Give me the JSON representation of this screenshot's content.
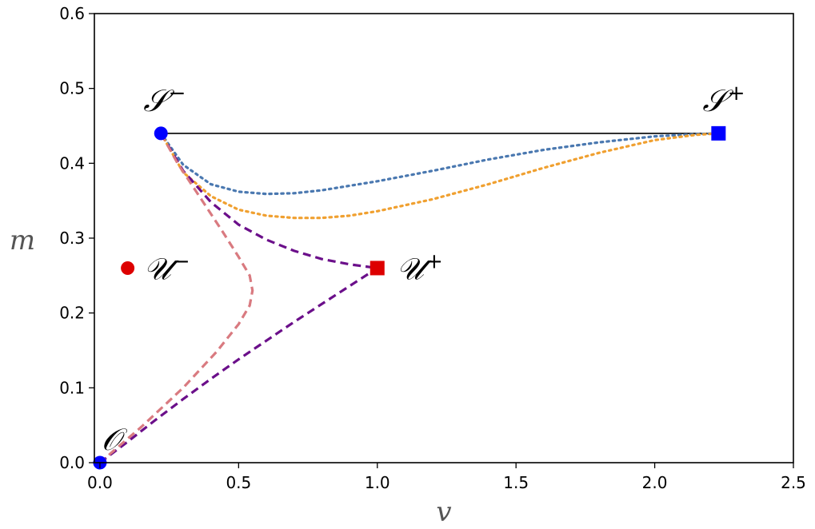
{
  "chart_data": {
    "type": "line",
    "title": "",
    "xlabel": "v",
    "ylabel": "m",
    "xlim": [
      -0.02,
      2.5
    ],
    "ylim": [
      0,
      0.6
    ],
    "xticks": [
      "0.0",
      "0.5",
      "1.0",
      "1.5",
      "2.0",
      "2.5"
    ],
    "yticks": [
      "0.0",
      "0.1",
      "0.2",
      "0.3",
      "0.4",
      "0.5",
      "0.6"
    ],
    "grid": false,
    "points": [
      {
        "label": "𝒪",
        "sup": "",
        "x": 0.0,
        "y": 0.0,
        "marker": "circle",
        "color": "#0000ff"
      },
      {
        "label": "𝒮",
        "sup": "−",
        "x": 0.22,
        "y": 0.44,
        "marker": "circle",
        "color": "#0000ff"
      },
      {
        "label": "𝒮",
        "sup": "+",
        "x": 2.23,
        "y": 0.44,
        "marker": "square",
        "color": "#0000ff"
      },
      {
        "label": "𝒰",
        "sup": "−",
        "x": 0.1,
        "y": 0.26,
        "marker": "circle",
        "color": "#dd0000"
      },
      {
        "label": "𝒰",
        "sup": "+",
        "x": 1.0,
        "y": 0.26,
        "marker": "square",
        "color": "#dd0000"
      }
    ],
    "series": [
      {
        "style": "solid",
        "color": "#000000",
        "x": [
          0.22,
          2.23
        ],
        "y": [
          0.44,
          0.44
        ]
      },
      {
        "style": "dotted",
        "color": "#4a78b0",
        "x": [
          0.22,
          0.3,
          0.4,
          0.5,
          0.6,
          0.7,
          0.8,
          1.0,
          1.2,
          1.4,
          1.6,
          1.8,
          2.0,
          2.15,
          2.23
        ],
        "y": [
          0.44,
          0.398,
          0.372,
          0.362,
          0.359,
          0.36,
          0.364,
          0.376,
          0.39,
          0.405,
          0.418,
          0.428,
          0.436,
          0.439,
          0.44
        ]
      },
      {
        "style": "dotted",
        "color": "#f0a030",
        "x": [
          0.22,
          0.3,
          0.4,
          0.5,
          0.6,
          0.7,
          0.8,
          0.9,
          1.0,
          1.2,
          1.4,
          1.6,
          1.8,
          2.0,
          2.15,
          2.23
        ],
        "y": [
          0.44,
          0.388,
          0.356,
          0.338,
          0.33,
          0.327,
          0.327,
          0.33,
          0.336,
          0.352,
          0.372,
          0.394,
          0.414,
          0.431,
          0.438,
          0.44
        ]
      },
      {
        "style": "dashed",
        "color": "#6b0f8a",
        "x": [
          0.22,
          0.3,
          0.4,
          0.5,
          0.6,
          0.7,
          0.8,
          0.9,
          1.0
        ],
        "y": [
          0.44,
          0.39,
          0.348,
          0.318,
          0.298,
          0.283,
          0.272,
          0.265,
          0.26
        ]
      },
      {
        "style": "dashed",
        "color": "#6b0f8a",
        "x": [
          0.0,
          0.1,
          0.2,
          0.3,
          0.4,
          0.5,
          0.6,
          0.7,
          0.8,
          0.9,
          1.0
        ],
        "y": [
          0.0,
          0.028,
          0.057,
          0.085,
          0.112,
          0.138,
          0.163,
          0.188,
          0.212,
          0.236,
          0.26
        ]
      },
      {
        "style": "dashed",
        "color": "#d97a80",
        "x": [
          0.22,
          0.28,
          0.36,
          0.44,
          0.5,
          0.54,
          0.55,
          0.54,
          0.5,
          0.42,
          0.3,
          0.15,
          0.0
        ],
        "y": [
          0.44,
          0.4,
          0.355,
          0.31,
          0.275,
          0.25,
          0.23,
          0.21,
          0.185,
          0.148,
          0.1,
          0.048,
          0.0
        ]
      }
    ]
  }
}
